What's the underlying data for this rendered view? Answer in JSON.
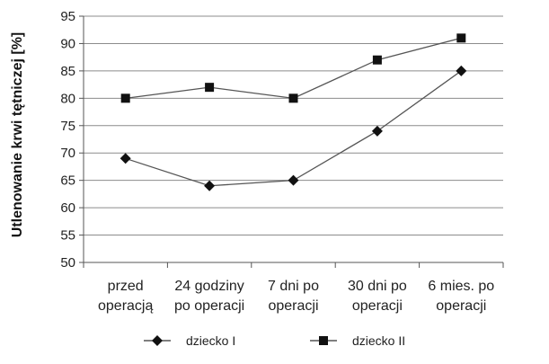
{
  "chart_data": {
    "type": "line",
    "title": "",
    "xlabel": "",
    "ylabel": "Utlenowanie krwi tętniczej [%]",
    "ylim": [
      50,
      95
    ],
    "yticks": [
      50,
      55,
      60,
      65,
      70,
      75,
      80,
      85,
      90,
      95
    ],
    "grid": true,
    "legend_position": "bottom",
    "categories": [
      [
        "przed",
        "operacją"
      ],
      [
        "24 godziny",
        "po operacji"
      ],
      [
        "7 dni po",
        "operacji"
      ],
      [
        "30 dni po",
        "operacji"
      ],
      [
        "6 mies. po",
        "operacji"
      ]
    ],
    "series": [
      {
        "name": "dziecko I",
        "marker": "diamond",
        "color": "#111111",
        "values": [
          69,
          64,
          65,
          74,
          85
        ]
      },
      {
        "name": "dziecko II",
        "marker": "square",
        "color": "#111111",
        "values": [
          80,
          82,
          80,
          87,
          91
        ]
      }
    ]
  }
}
